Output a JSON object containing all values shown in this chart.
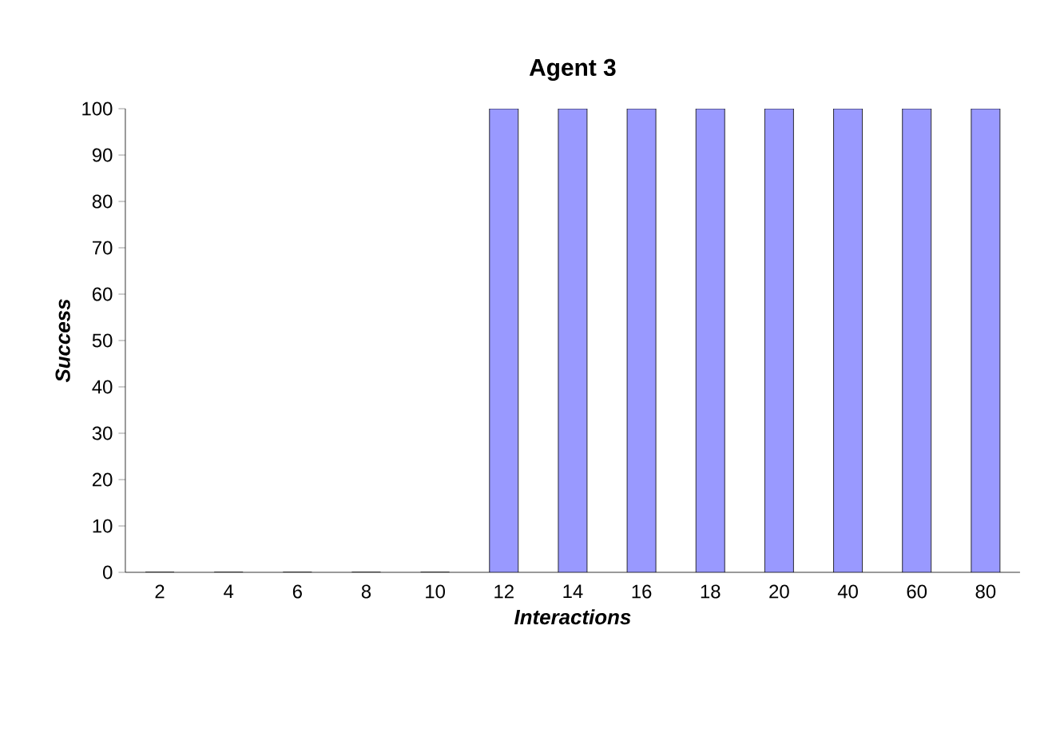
{
  "chart_data": {
    "type": "bar",
    "title": "Agent 3",
    "xlabel": "Interactions",
    "ylabel": "Success",
    "categories": [
      "2",
      "4",
      "6",
      "8",
      "10",
      "12",
      "14",
      "16",
      "18",
      "20",
      "40",
      "60",
      "80"
    ],
    "values": [
      0,
      0,
      0,
      0,
      0,
      100,
      100,
      100,
      100,
      100,
      100,
      100,
      100
    ],
    "color": "#9999ff",
    "ylim": [
      0,
      100
    ],
    "yticks": [
      0,
      10,
      20,
      30,
      40,
      50,
      60,
      70,
      80,
      90,
      100
    ]
  }
}
